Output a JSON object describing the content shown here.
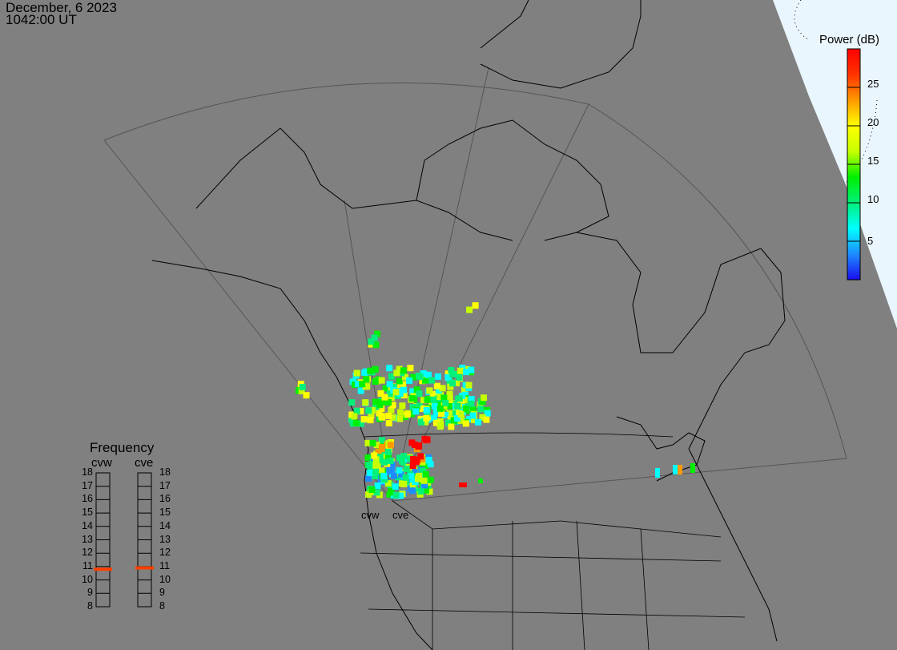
{
  "header": {
    "date": "December, 6 2023",
    "time": "1042:00 UT"
  },
  "colorbar": {
    "title": "Power (dB)",
    "range": [
      0,
      30
    ],
    "ticks": [
      "5",
      "10",
      "15",
      "20",
      "25"
    ],
    "stops": [
      "#1a0df0",
      "#1e8cff",
      "#00ffff",
      "#00f07a",
      "#00f000",
      "#c8ff00",
      "#ffff00",
      "#ff9900",
      "#ff3300",
      "#ff0000"
    ]
  },
  "frequency": {
    "title": "Frequency",
    "radars": [
      {
        "name": "cvw",
        "value_mhz": 10.8
      },
      {
        "name": "cve",
        "value_mhz": 10.9
      }
    ],
    "scale": [
      "18",
      "17",
      "16",
      "15",
      "14",
      "13",
      "12",
      "11",
      "10",
      "9",
      "8"
    ],
    "range": [
      8,
      18
    ],
    "marker_color": "#ff4000"
  },
  "map": {
    "background": "#808080",
    "daylight_color": "#eaf6fd",
    "radar_sites": [
      {
        "label": "cvw"
      },
      {
        "label": "cve"
      }
    ]
  }
}
